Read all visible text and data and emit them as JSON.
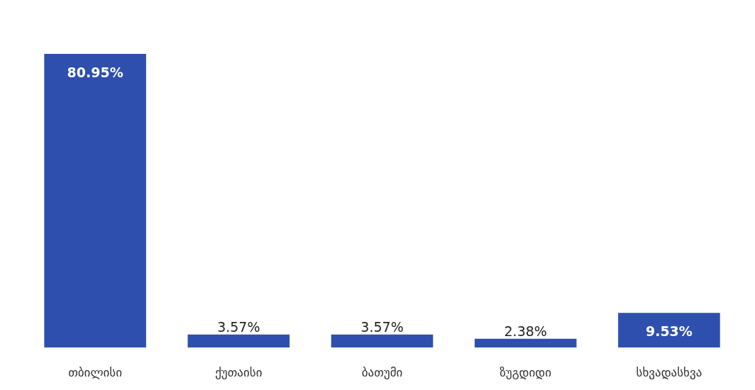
{
  "chart_data": {
    "type": "bar",
    "categories": [
      "თბილისი",
      "ქუთაისი",
      "ბათუმი",
      "ზუგდიდი",
      "სხვადასხვა"
    ],
    "values": [
      80.95,
      3.57,
      3.57,
      2.38,
      9.53
    ],
    "value_labels": [
      "80.95%",
      "3.57%",
      "3.57%",
      "2.38%",
      "9.53%"
    ],
    "color": "#2e4fae"
  }
}
